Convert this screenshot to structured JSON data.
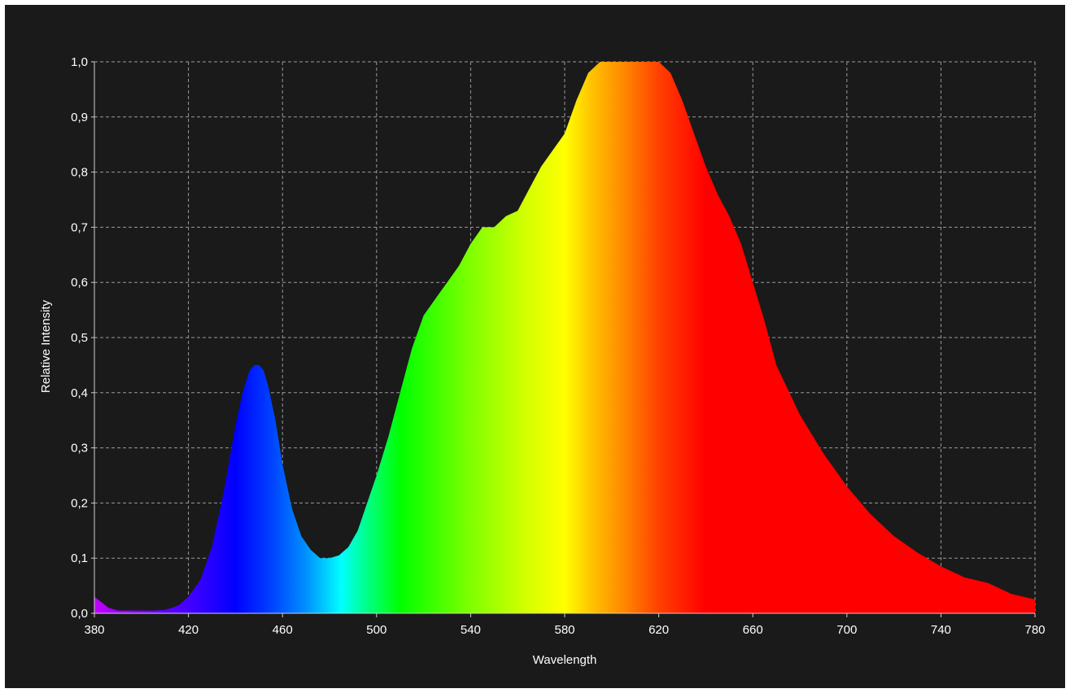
{
  "chart_data": {
    "type": "area",
    "xlabel": "Wavelength",
    "ylabel": "Relative Intensity",
    "xlim": [
      380,
      780
    ],
    "ylim": [
      0.0,
      1.0
    ],
    "x_ticks": [
      "380",
      "420",
      "460",
      "500",
      "540",
      "580",
      "620",
      "660",
      "700",
      "740",
      "780"
    ],
    "y_ticks": [
      "0,0",
      "0,1",
      "0,2",
      "0,3",
      "0,4",
      "0,5",
      "0,6",
      "0,7",
      "0,8",
      "0,9",
      "1,0"
    ],
    "grid": true,
    "fill": "spectrum",
    "colors": {
      "background": "#1a1a1a",
      "grid": "#9a9a9a",
      "text": "#ffffff"
    },
    "series": [
      {
        "x": [
          380,
          383,
          386,
          390,
          395,
          400,
          405,
          410,
          413,
          416,
          420,
          425,
          430,
          435,
          440,
          443,
          446,
          448,
          450,
          452,
          454,
          457,
          460,
          464,
          468,
          472,
          476,
          480,
          484,
          488,
          492,
          496,
          500,
          505,
          510,
          515,
          520,
          525,
          530,
          535,
          540,
          545,
          550,
          555,
          560,
          565,
          570,
          575,
          580,
          585,
          590,
          595,
          600,
          605,
          610,
          615,
          620,
          625,
          630,
          635,
          640,
          645,
          650,
          655,
          660,
          665,
          670,
          680,
          690,
          700,
          710,
          720,
          730,
          740,
          750,
          760,
          770,
          780
        ],
        "y": [
          0.03,
          0.02,
          0.01,
          0.005,
          0.005,
          0.005,
          0.005,
          0.006,
          0.01,
          0.015,
          0.03,
          0.06,
          0.12,
          0.22,
          0.34,
          0.4,
          0.44,
          0.45,
          0.45,
          0.44,
          0.41,
          0.35,
          0.27,
          0.19,
          0.14,
          0.115,
          0.1,
          0.1,
          0.105,
          0.12,
          0.15,
          0.2,
          0.25,
          0.32,
          0.4,
          0.48,
          0.54,
          0.57,
          0.6,
          0.63,
          0.67,
          0.7,
          0.7,
          0.72,
          0.73,
          0.77,
          0.81,
          0.84,
          0.87,
          0.93,
          0.98,
          1.0,
          1.0,
          1.0,
          1.0,
          1.0,
          1.0,
          0.98,
          0.93,
          0.87,
          0.81,
          0.76,
          0.72,
          0.67,
          0.6,
          0.53,
          0.45,
          0.36,
          0.29,
          0.23,
          0.18,
          0.14,
          0.11,
          0.085,
          0.065,
          0.055,
          0.035,
          0.025
        ]
      }
    ]
  }
}
